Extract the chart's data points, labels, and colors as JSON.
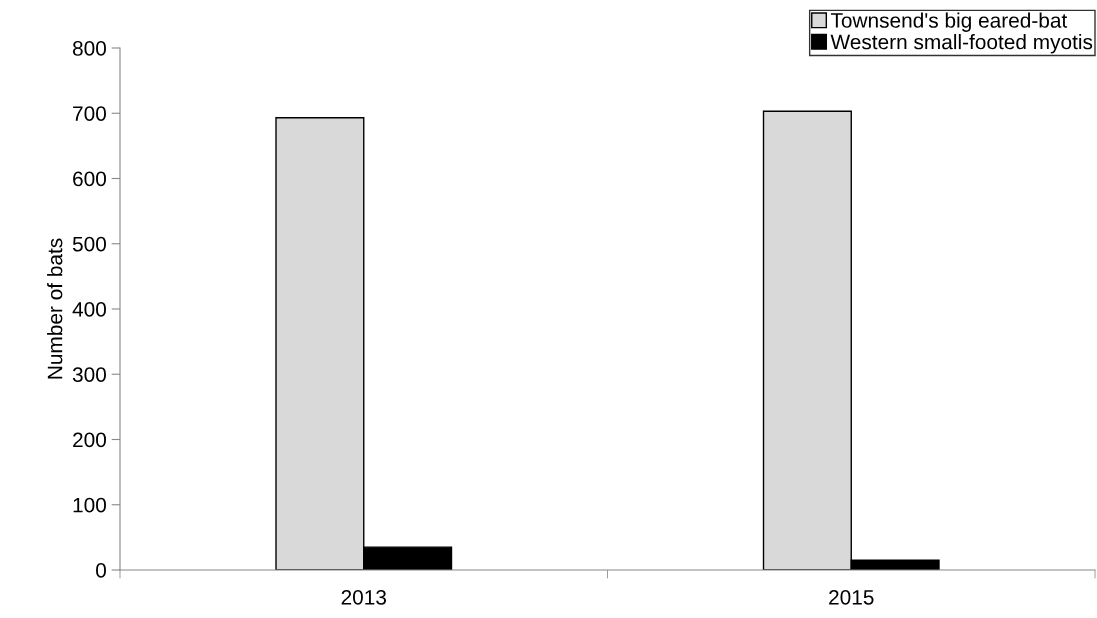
{
  "chart_data": {
    "type": "bar",
    "ylabel": "Number of bats",
    "categories": [
      "2013",
      "2015"
    ],
    "series": [
      {
        "name": "Townsend's big eared-bat",
        "color": "#d9d9d9",
        "values": [
          693,
          703
        ]
      },
      {
        "name": "Western small-footed myotis",
        "color": "#000000",
        "values": [
          35,
          15
        ]
      }
    ],
    "ylim": [
      0,
      800
    ],
    "yticks": [
      0,
      100,
      200,
      300,
      400,
      500,
      600,
      700,
      800
    ],
    "grid": false,
    "legend": "top right"
  }
}
